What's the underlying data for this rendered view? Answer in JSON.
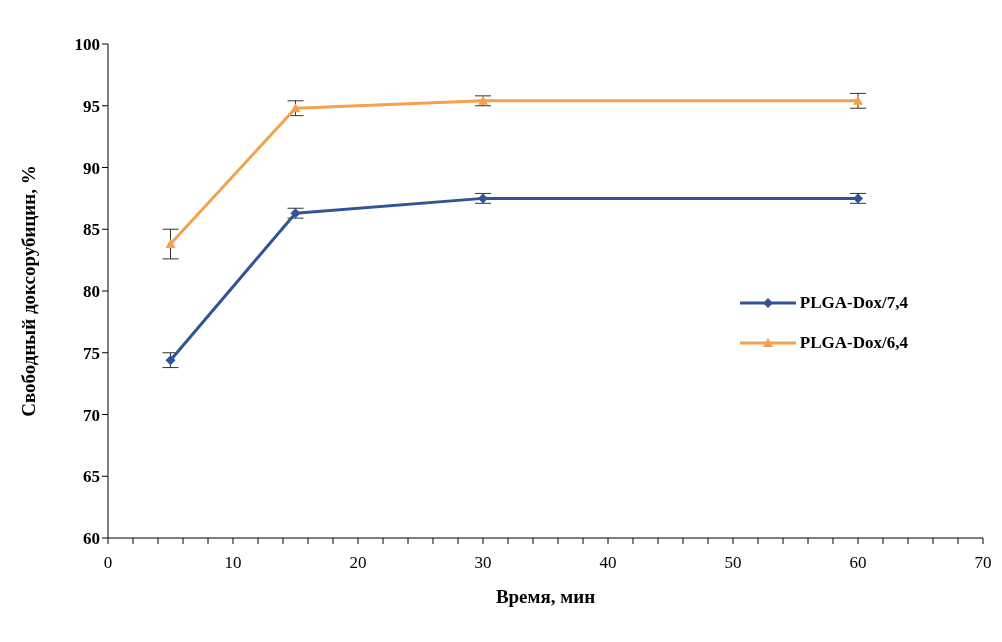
{
  "chart_data": {
    "type": "line",
    "xlabel": "Время,  мин",
    "ylabel": "Свободный  доксорубицин,  %",
    "xlim": [
      0,
      70
    ],
    "xticks": [
      0,
      {
        "value": 2,
        "label": null
      },
      {
        "value": 4,
        "label": null
      },
      {
        "value": 6,
        "label": null
      },
      {
        "value": 8,
        "label": null
      },
      10,
      {
        "value": 12,
        "label": null
      },
      {
        "value": 14,
        "label": null
      },
      {
        "value": 16,
        "label": null
      },
      {
        "value": 18,
        "label": null
      },
      20,
      {
        "value": 22,
        "label": null
      },
      {
        "value": 24,
        "label": null
      },
      {
        "value": 26,
        "label": null
      },
      {
        "value": 28,
        "label": null
      },
      30,
      {
        "value": 32,
        "label": null
      },
      {
        "value": 34,
        "label": null
      },
      {
        "value": 36,
        "label": null
      },
      {
        "value": 38,
        "label": null
      },
      40,
      {
        "value": 42,
        "label": null
      },
      {
        "value": 44,
        "label": null
      },
      {
        "value": 46,
        "label": null
      },
      {
        "value": 48,
        "label": null
      },
      50,
      {
        "value": 52,
        "label": null
      },
      {
        "value": 54,
        "label": null
      },
      {
        "value": 56,
        "label": null
      },
      {
        "value": 58,
        "label": null
      },
      60,
      {
        "value": 62,
        "label": null
      },
      {
        "value": 64,
        "label": null
      },
      {
        "value": 66,
        "label": null
      },
      {
        "value": 68,
        "label": null
      },
      70
    ],
    "ylim": [
      60,
      100
    ],
    "yticks": [
      60,
      65,
      70,
      75,
      80,
      85,
      90,
      95,
      100
    ],
    "grid": false,
    "legend": "right",
    "line_style": "solid",
    "x": [
      5,
      15,
      30,
      60
    ],
    "series": [
      {
        "name": "PLGA-Dox/7,4",
        "color": "#2f5597",
        "marker": "diamond",
        "values": [
          74.4,
          86.3,
          87.5,
          87.5
        ],
        "errors": [
          0.6,
          0.4,
          0.4,
          0.4
        ]
      },
      {
        "name": "PLGA-Dox/6,4",
        "color": "#f4a14c",
        "marker": "triangle",
        "values": [
          83.8,
          94.8,
          95.4,
          95.4
        ],
        "errors": [
          1.2,
          0.6,
          0.4,
          0.6
        ]
      }
    ]
  }
}
